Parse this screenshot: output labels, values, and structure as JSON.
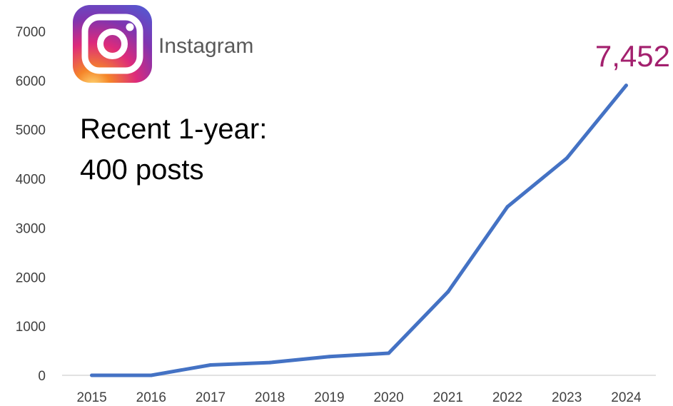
{
  "brand": {
    "name": "Instagram",
    "logo_icon": "instagram-logo-icon",
    "gradient_colors": [
      "#515BD4",
      "#8134AF",
      "#DD2A7B",
      "#F58529",
      "#FEDA77"
    ]
  },
  "annotation": {
    "line1": "Recent 1-year:",
    "line2": "400 posts"
  },
  "total_label": {
    "text": "7,452",
    "color": "#A3206E"
  },
  "chart_data": {
    "type": "line",
    "x": [
      "2015",
      "2016",
      "2017",
      "2018",
      "2019",
      "2020",
      "2021",
      "2022",
      "2023",
      "2024"
    ],
    "series": [
      {
        "color": "#4472C4",
        "values": [
          0,
          0,
          210,
          260,
          380,
          450,
          1700,
          3430,
          4420,
          5900
        ]
      }
    ],
    "ylim": [
      0,
      7000
    ],
    "yticks": [
      0,
      1000,
      2000,
      3000,
      4000,
      5000,
      6000,
      7000
    ],
    "ytick_labels": [
      "0",
      "1000",
      "2000",
      "3000",
      "4000",
      "5000",
      "6000",
      "7000"
    ],
    "grid": false,
    "title": "",
    "xlabel": "",
    "ylabel": ""
  }
}
